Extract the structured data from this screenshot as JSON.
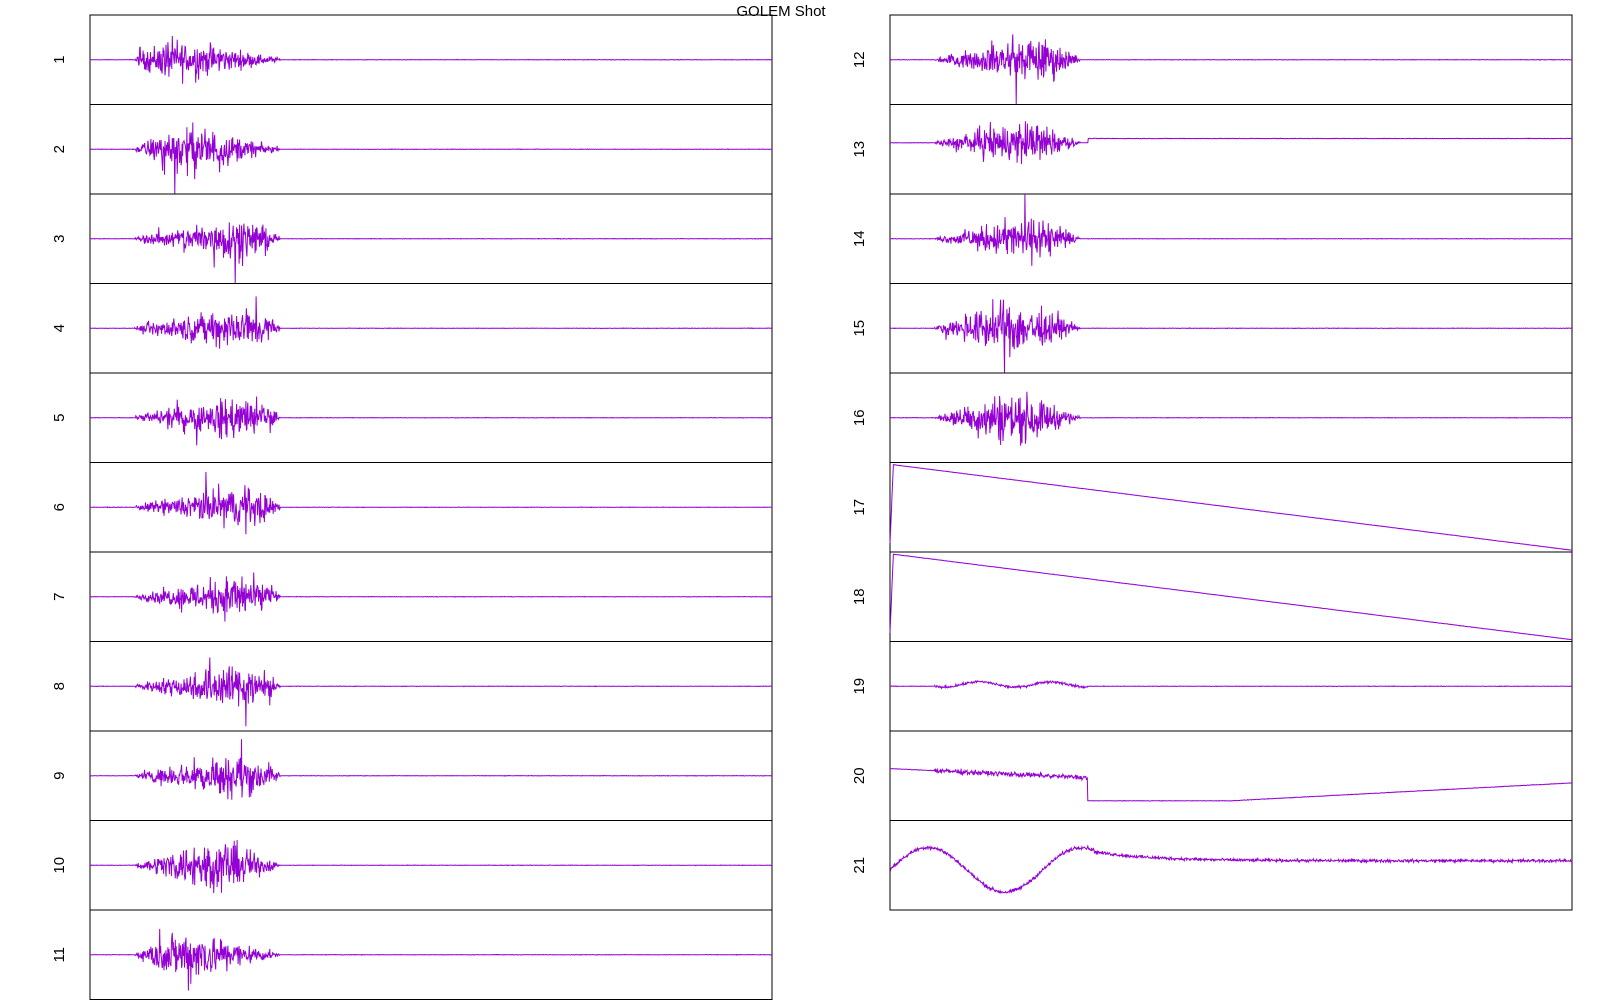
{
  "title": "GOLEM Shot",
  "colors": {
    "trace": "#9400d3",
    "frame": "#000000",
    "background": "#ffffff"
  },
  "chart_data": {
    "type": "line",
    "title": "GOLEM Shot",
    "grid": false,
    "legend": "none",
    "panels": [
      {
        "label": "1",
        "column": "left",
        "shape": "burst",
        "start": 0.065,
        "end": 0.29,
        "amp": 0.42,
        "peak": 0.15,
        "level": 0.0
      },
      {
        "label": "2",
        "column": "left",
        "shape": "burst",
        "start": 0.065,
        "end": 0.29,
        "amp": 0.4,
        "peak": 0.3,
        "level": 0.0
      },
      {
        "label": "3",
        "column": "left",
        "shape": "burst",
        "start": 0.065,
        "end": 0.29,
        "amp": 0.4,
        "peak": 0.75,
        "level": 0.0
      },
      {
        "label": "4",
        "column": "left",
        "shape": "burst",
        "start": 0.065,
        "end": 0.29,
        "amp": 0.46,
        "peak": 0.85,
        "level": 0.0
      },
      {
        "label": "5",
        "column": "left",
        "shape": "burst",
        "start": 0.065,
        "end": 0.29,
        "amp": 0.46,
        "peak": 0.85,
        "level": 0.0
      },
      {
        "label": "6",
        "column": "left",
        "shape": "burst",
        "start": 0.065,
        "end": 0.29,
        "amp": 0.46,
        "peak": 0.85,
        "level": 0.0
      },
      {
        "label": "7",
        "column": "left",
        "shape": "burst",
        "start": 0.065,
        "end": 0.29,
        "amp": 0.44,
        "peak": 0.8,
        "level": 0.0
      },
      {
        "label": "8",
        "column": "left",
        "shape": "burst",
        "start": 0.065,
        "end": 0.29,
        "amp": 0.46,
        "peak": 0.8,
        "level": 0.0
      },
      {
        "label": "9",
        "column": "left",
        "shape": "burst",
        "start": 0.065,
        "end": 0.29,
        "amp": 0.44,
        "peak": 0.8,
        "level": 0.0
      },
      {
        "label": "10",
        "column": "left",
        "shape": "burst",
        "start": 0.065,
        "end": 0.29,
        "amp": 0.42,
        "peak": 0.55,
        "level": 0.0
      },
      {
        "label": "11",
        "column": "left",
        "shape": "burst",
        "start": 0.065,
        "end": 0.29,
        "amp": 0.42,
        "peak": 0.3,
        "level": 0.0
      },
      {
        "label": "12",
        "column": "right",
        "shape": "burst",
        "start": 0.065,
        "end": 0.29,
        "amp": 0.42,
        "peak": 0.75,
        "level": 0.0
      },
      {
        "label": "13",
        "column": "right",
        "shape": "burst",
        "start": 0.065,
        "end": 0.29,
        "amp": 0.36,
        "peak": 0.6,
        "level": 0.12
      },
      {
        "label": "14",
        "column": "right",
        "shape": "burst",
        "start": 0.065,
        "end": 0.29,
        "amp": 0.36,
        "peak": 0.65,
        "level": 0.0
      },
      {
        "label": "15",
        "column": "right",
        "shape": "burst",
        "start": 0.065,
        "end": 0.29,
        "amp": 0.42,
        "peak": 0.5,
        "level": 0.0
      },
      {
        "label": "16",
        "column": "right",
        "shape": "burst",
        "start": 0.065,
        "end": 0.29,
        "amp": 0.42,
        "peak": 0.5,
        "level": 0.0
      },
      {
        "label": "17",
        "column": "right",
        "shape": "decay",
        "start": 0.005,
        "end": 1.0,
        "amp": 0.48,
        "peak": 0.0,
        "level": 0.0
      },
      {
        "label": "18",
        "column": "right",
        "shape": "decay",
        "start": 0.005,
        "end": 1.0,
        "amp": 0.48,
        "peak": 0.0,
        "level": 0.0
      },
      {
        "label": "19",
        "column": "right",
        "shape": "small",
        "start": 0.065,
        "end": 0.29,
        "amp": 0.05,
        "peak": 0.0,
        "level": 0.0
      },
      {
        "label": "20",
        "column": "right",
        "shape": "drift",
        "start": 0.065,
        "end": 0.29,
        "amp": 0.1,
        "peak": 0.0,
        "level": 0.0
      },
      {
        "label": "21",
        "column": "right",
        "shape": "wave",
        "start": 0.0,
        "end": 1.0,
        "amp": 0.3,
        "peak": 0.0,
        "level": 0.0
      }
    ]
  }
}
